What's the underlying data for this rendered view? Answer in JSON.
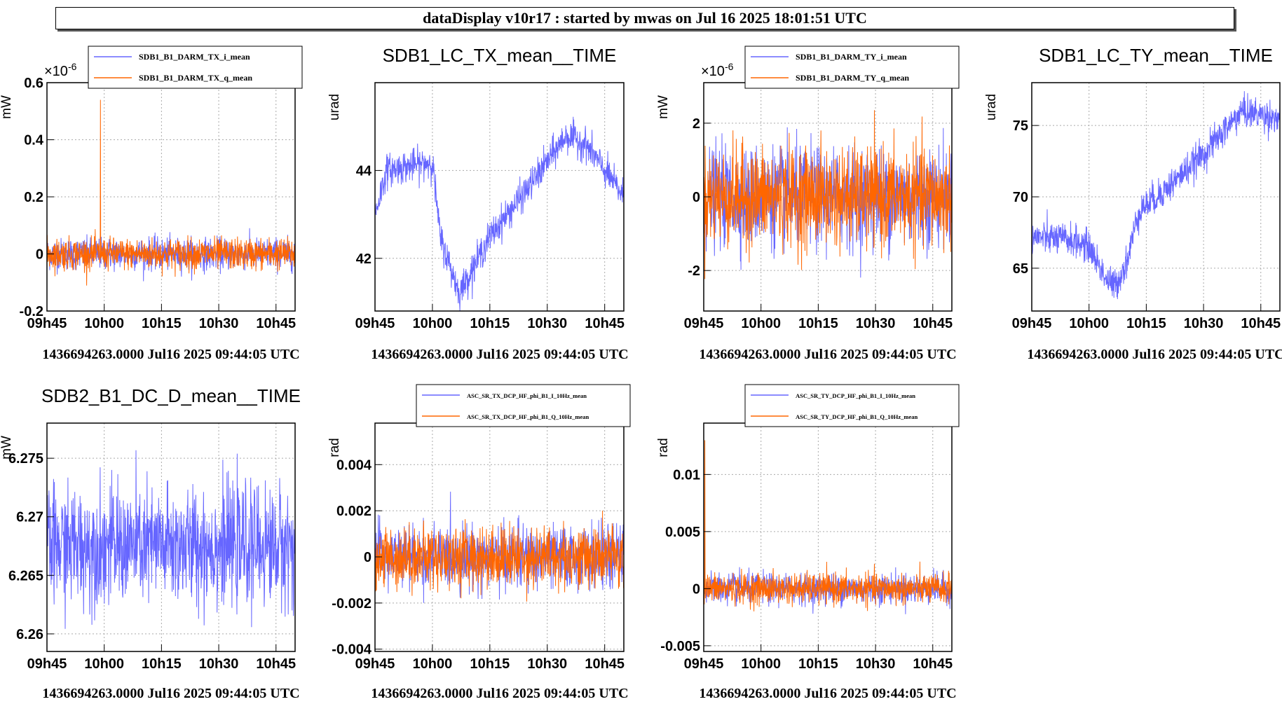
{
  "header": {
    "title": "dataDisplay v10r17 : started by mwas on Jul 16 2025 18:01:51 UTC"
  },
  "colors": {
    "series1": "#6666ff",
    "series2": "#ff6600",
    "grid": "#aaaaaa",
    "frame": "#000000"
  },
  "chart_data": [
    {
      "type": "line",
      "title": "",
      "ylabel": "mW",
      "y_multiplier": "×10-6",
      "xticks": [
        "09h45",
        "10h00",
        "10h15",
        "10h30",
        "10h45"
      ],
      "yticks": [
        "-0.2",
        "0",
        "0.2",
        "0.4",
        "0.6"
      ],
      "ylim": [
        -0.2,
        0.6
      ],
      "grid": true,
      "legend": "top",
      "series": [
        {
          "name": "SDB1_B1_DARM_TX_i_mean",
          "color": "#6666ff",
          "mean": 0.0,
          "noise": 0.05
        },
        {
          "name": "SDB1_B1_DARM_TX_q_mean",
          "color": "#ff6600",
          "mean": 0.0,
          "noise": 0.05,
          "spike": 0.54
        }
      ],
      "footer": "1436694263.0000 Jul16 2025 09:44:05 UTC"
    },
    {
      "type": "line",
      "title": "SDB1_LC_TX_mean__TIME",
      "ylabel": "urad",
      "xticks": [
        "09h45",
        "10h00",
        "10h15",
        "10h30",
        "10h45"
      ],
      "yticks": [
        "42",
        "44"
      ],
      "ylim": [
        40.8,
        46.0
      ],
      "grid": true,
      "series": [
        {
          "name": "SDB1_LC_TX_mean__TIME",
          "color": "#6666ff",
          "trend": [
            [
              0,
              43.0
            ],
            [
              3,
              44.0
            ],
            [
              15,
              44.2
            ],
            [
              17,
              42.5
            ],
            [
              22,
              41.2
            ],
            [
              30,
              42.5
            ],
            [
              40,
              43.6
            ],
            [
              50,
              44.8
            ],
            [
              55,
              44.6
            ],
            [
              65,
              43.4
            ]
          ]
        }
      ],
      "footer": "1436694263.0000 Jul16 2025 09:44:05 UTC"
    },
    {
      "type": "line",
      "title": "",
      "ylabel": "mW",
      "y_multiplier": "×10-6",
      "xticks": [
        "09h45",
        "10h00",
        "10h15",
        "10h30",
        "10h45"
      ],
      "yticks": [
        "-2",
        "0",
        "2"
      ],
      "ylim": [
        -3.1,
        3.1
      ],
      "grid": true,
      "legend": "top",
      "series": [
        {
          "name": "SDB1_B1_DARM_TY_i_mean",
          "color": "#6666ff",
          "mean": 0.0,
          "noise": 1.2
        },
        {
          "name": "SDB1_B1_DARM_TY_q_mean",
          "color": "#ff6600",
          "mean": 0.0,
          "noise": 1.2
        }
      ],
      "footer": "1436694263.0000 Jul16 2025 09:44:05 UTC"
    },
    {
      "type": "line",
      "title": "SDB1_LC_TY_mean__TIME",
      "ylabel": "urad",
      "xticks": [
        "09h45",
        "10h00",
        "10h15",
        "10h30",
        "10h45"
      ],
      "yticks": [
        "65",
        "70",
        "75"
      ],
      "ylim": [
        62.0,
        78.0
      ],
      "grid": true,
      "series": [
        {
          "name": "SDB1_LC_TY_mean__TIME",
          "color": "#6666ff",
          "trend": [
            [
              0,
              67.2
            ],
            [
              10,
              67.0
            ],
            [
              15,
              66.5
            ],
            [
              20,
              64.0
            ],
            [
              22,
              63.8
            ],
            [
              25,
              65.5
            ],
            [
              28,
              69.0
            ],
            [
              35,
              70.5
            ],
            [
              45,
              73.0
            ],
            [
              55,
              76.0
            ],
            [
              65,
              75.5
            ]
          ]
        }
      ],
      "footer": "1436694263.0000 Jul16 2025 09:44:05 UTC"
    },
    {
      "type": "line",
      "title": "SDB2_B1_DC_D_mean__TIME",
      "ylabel": "mW",
      "xticks": [
        "09h45",
        "10h00",
        "10h15",
        "10h30",
        "10h45"
      ],
      "yticks": [
        "6.26",
        "6.265",
        "6.27",
        "6.275"
      ],
      "ylim": [
        6.2585,
        6.278
      ],
      "grid": true,
      "series": [
        {
          "name": "SDB2_B1_DC_D_mean__TIME",
          "color": "#6666ff",
          "mean": 6.2675,
          "noise": 0.0045
        }
      ],
      "footer": "1436694263.0000 Jul16 2025 09:44:05 UTC"
    },
    {
      "type": "line",
      "title": "",
      "ylabel": "rad",
      "xticks": [
        "09h45",
        "10h00",
        "10h15",
        "10h30",
        "10h45"
      ],
      "yticks": [
        "-0.004",
        "-0.002",
        "0",
        "0.002",
        "0.004"
      ],
      "ylim": [
        -0.0041,
        0.0058
      ],
      "grid": true,
      "legend": "top",
      "series": [
        {
          "name": "ASC_SR_TX_DCP_HF_phi_B1_I_10Hz_mean",
          "color": "#6666ff",
          "mean": 0.0,
          "noise": 0.0012
        },
        {
          "name": "ASC_SR_TX_DCP_HF_phi_B1_Q_10Hz_mean",
          "color": "#ff6600",
          "mean": 0.0,
          "noise": 0.0012
        }
      ],
      "footer": "1436694263.0000 Jul16 2025 09:44:05 UTC"
    },
    {
      "type": "line",
      "title": "",
      "ylabel": "rad",
      "xticks": [
        "09h45",
        "10h00",
        "10h15",
        "10h30",
        "10h45"
      ],
      "yticks": [
        "-0.005",
        "0",
        "0.005",
        "0.01"
      ],
      "ylim": [
        -0.0055,
        0.0145
      ],
      "grid": true,
      "legend": "top",
      "series": [
        {
          "name": "ASC_SR_TY_DCP_HF_phi_B1_I_10Hz_mean",
          "color": "#6666ff",
          "mean": 0.0,
          "noise": 0.0012
        },
        {
          "name": "ASC_SR_TY_DCP_HF_phi_B1_Q_10Hz_mean",
          "color": "#ff6600",
          "mean": 0.0,
          "noise": 0.0012,
          "spike": 0.013
        }
      ],
      "footer": "1436694263.0000 Jul16 2025 09:44:05 UTC"
    }
  ]
}
